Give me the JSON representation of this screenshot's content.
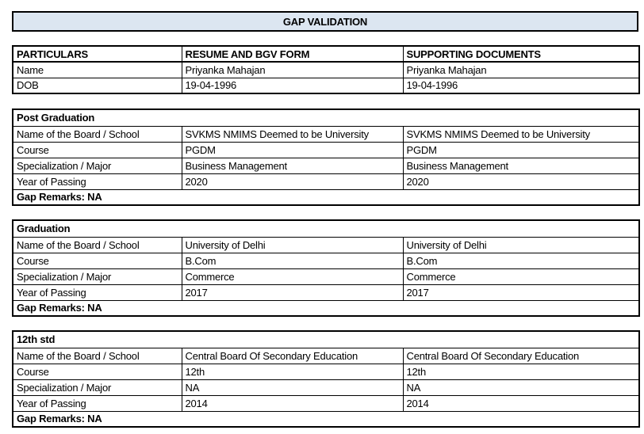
{
  "title": "GAP VALIDATION",
  "colors": {
    "shaded_cell": "#dce6f1",
    "border": "#000000",
    "background": "#ffffff"
  },
  "particulars_table": {
    "headers": [
      "PARTICULARS",
      "RESUME AND BGV FORM",
      "SUPPORTING DOCUMENTS"
    ],
    "rows": [
      {
        "label": "Name",
        "resume": "Priyanka Mahajan",
        "supporting": "Priyanka Mahajan"
      },
      {
        "label": "DOB",
        "resume": "19-04-1996",
        "supporting": "19-04-1996"
      }
    ]
  },
  "sections": [
    {
      "title": "Post Graduation",
      "rows": [
        {
          "label": "Name of the Board / School",
          "resume": "SVKMS NMIMS Deemed to be University",
          "supporting": "SVKMS NMIMS Deemed to be University"
        },
        {
          "label": "Course",
          "resume": "PGDM",
          "supporting": "PGDM"
        },
        {
          "label": "Specialization / Major",
          "resume": "Business Management",
          "supporting": "Business Management"
        },
        {
          "label": "Year of Passing",
          "resume": "2020",
          "supporting": "2020"
        }
      ],
      "gap_remarks": "Gap Remarks: NA"
    },
    {
      "title": "Graduation",
      "rows": [
        {
          "label": "Name of the Board / School",
          "resume": "University of Delhi",
          "supporting": "University of Delhi"
        },
        {
          "label": "Course",
          "resume": "B.Com",
          "supporting": "B.Com"
        },
        {
          "label": "Specialization / Major",
          "resume": "Commerce",
          "supporting": "Commerce"
        },
        {
          "label": "Year of Passing",
          "resume": "2017",
          "supporting": "2017"
        }
      ],
      "gap_remarks": "Gap Remarks: NA"
    },
    {
      "title": "12th std",
      "rows": [
        {
          "label": "Name of the Board / School",
          "resume": "Central Board Of Secondary Education",
          "supporting": "Central Board Of Secondary Education"
        },
        {
          "label": "Course",
          "resume": "12th",
          "supporting": "12th"
        },
        {
          "label": "Specialization / Major",
          "resume": "NA",
          "supporting": "NA"
        },
        {
          "label": "Year of Passing",
          "resume": "2014",
          "supporting": "2014"
        }
      ],
      "gap_remarks": "Gap Remarks: NA"
    }
  ]
}
